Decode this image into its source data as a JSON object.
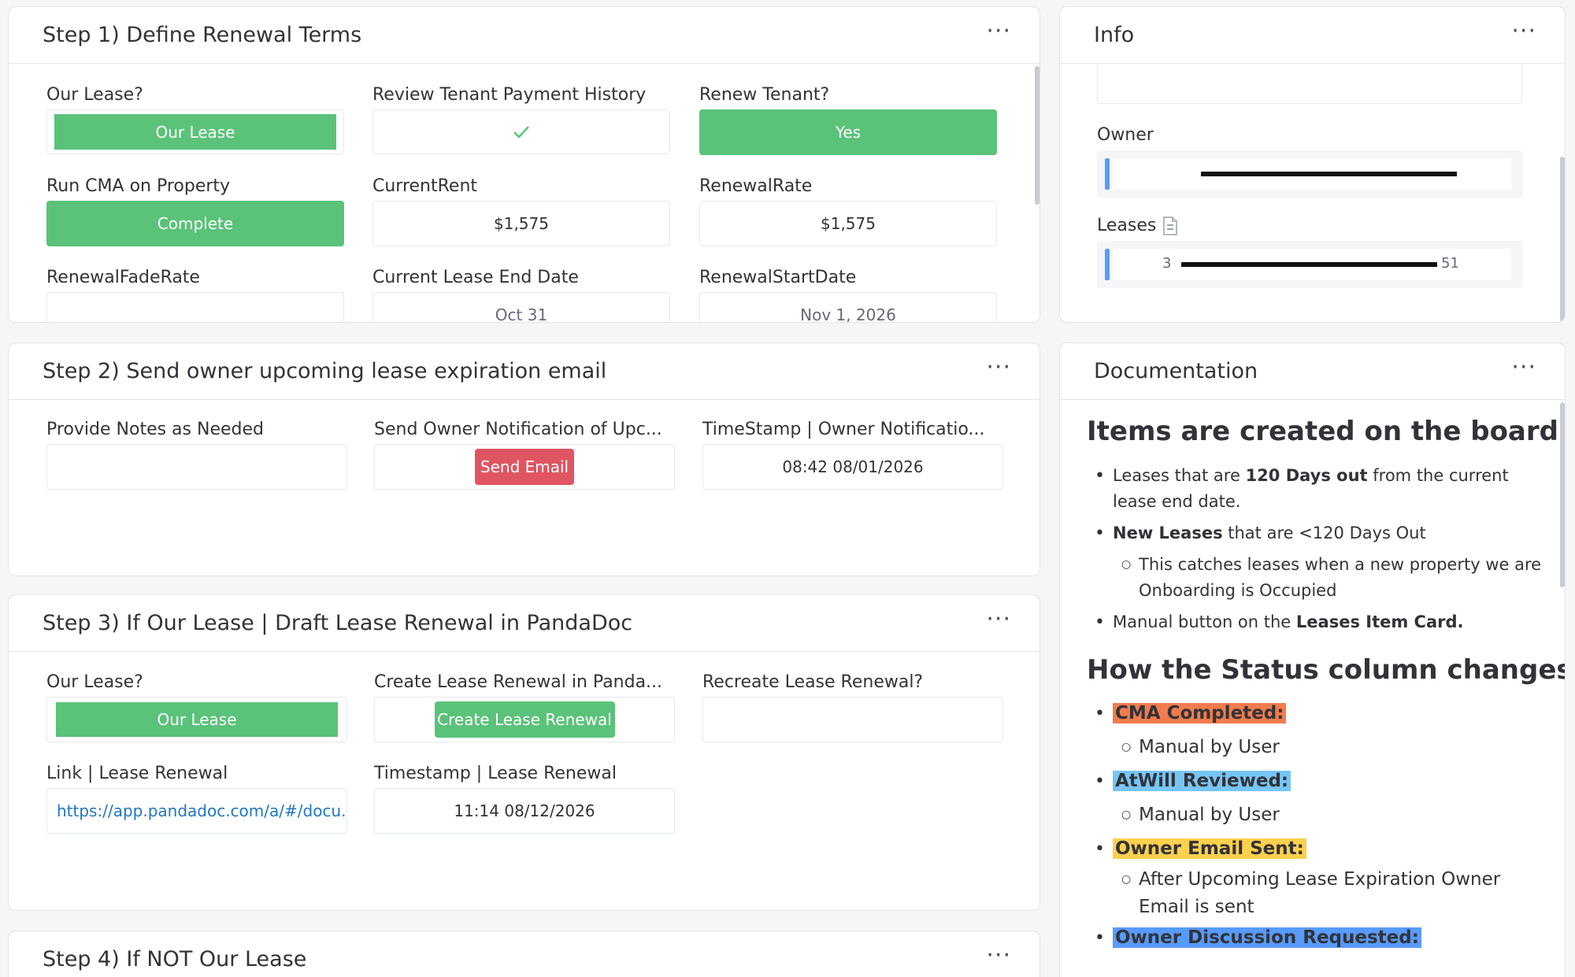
{
  "colors": {
    "status_green": "#5bc27a",
    "send_red": "#df5562",
    "link_blue": "#1f76c2",
    "hl_orange": "#f27c4d",
    "hl_blue": "#77c5f7",
    "hl_yellow": "#fdd04d",
    "hl_blue2": "#579bfc",
    "person_bar": "#5e9bf5"
  },
  "step1": {
    "title": "Step 1) Define Renewal Terms",
    "menu_icon": "dots-icon",
    "our_lease_label": "Our Lease?",
    "our_lease_value": "Our Lease",
    "review_label": "Review Tenant Payment History",
    "review_icon": "checkmark-icon",
    "renew_label": "Renew Tenant?",
    "renew_value": "Yes",
    "cma_label": "Run CMA on Property",
    "cma_value": "Complete",
    "current_rent_label": "CurrentRent",
    "current_rent_value": "$1,575",
    "renewal_rate_label": "RenewalRate",
    "renewal_rate_value": "$1,575",
    "fade_rate_label": "RenewalFadeRate",
    "fade_rate_value": "",
    "end_date_label": "Current Lease End Date",
    "end_date_value": "Oct 31",
    "start_date_label": "RenewalStartDate",
    "start_date_value": "Nov 1, 2026"
  },
  "step2": {
    "title": "Step 2) Send owner upcoming lease expiration email",
    "notes_label": "Provide Notes as Needed",
    "notes_value": "",
    "send_label": "Send Owner Notification of Upc...",
    "send_button": "Send Email",
    "timestamp_label": "TimeStamp | Owner Notificatio...",
    "timestamp_value": "08:42 08/01/2026"
  },
  "step3": {
    "title": "Step 3) If Our Lease | Draft Lease Renewal in PandaDoc",
    "our_lease_label": "Our Lease?",
    "our_lease_value": "Our Lease",
    "create_label": "Create Lease Renewal in Panda...",
    "create_button": "Create Lease Renewal",
    "recreate_label": "Recreate Lease Renewal?",
    "recreate_value": "",
    "link_label": "Link | Lease Renewal",
    "link_value": "https://app.pandadoc.com/a/#/docu...",
    "timestamp_label": "Timestamp | Lease Renewal",
    "timestamp_value": "11:14 08/12/2026"
  },
  "step4": {
    "title": "Step 4) If NOT Our Lease"
  },
  "info": {
    "title": "Info",
    "owner_label": "Owner",
    "leases_label": "Leases",
    "leases_icon": "document-icon",
    "leases_prefix": "3",
    "leases_suffix": "51"
  },
  "documentation": {
    "title": "Documentation",
    "heading1": "Items are created on the board by:",
    "b1_pre": "Leases that are ",
    "b1_bold": "120 Days out",
    "b1_post": " from the current lease end date.",
    "b2_bold": "New Leases",
    "b2_post": " that are <120 Days Out",
    "b2_sub": "This catches leases when a new property we are Onboarding is Occupied",
    "b3_pre": "Manual button on the ",
    "b3_bold": "Leases Item Card.",
    "heading2": "How the Status column changes:",
    "s1": "CMA Completed:",
    "s1_sub": "Manual by User",
    "s2": "AtWill Reviewed:",
    "s2_sub": "Manual by User",
    "s3": "Owner Email Sent:",
    "s3_sub": "After Upcoming Lease Expiration Owner Email is sent",
    "s4": "Owner Discussion Requested:"
  }
}
